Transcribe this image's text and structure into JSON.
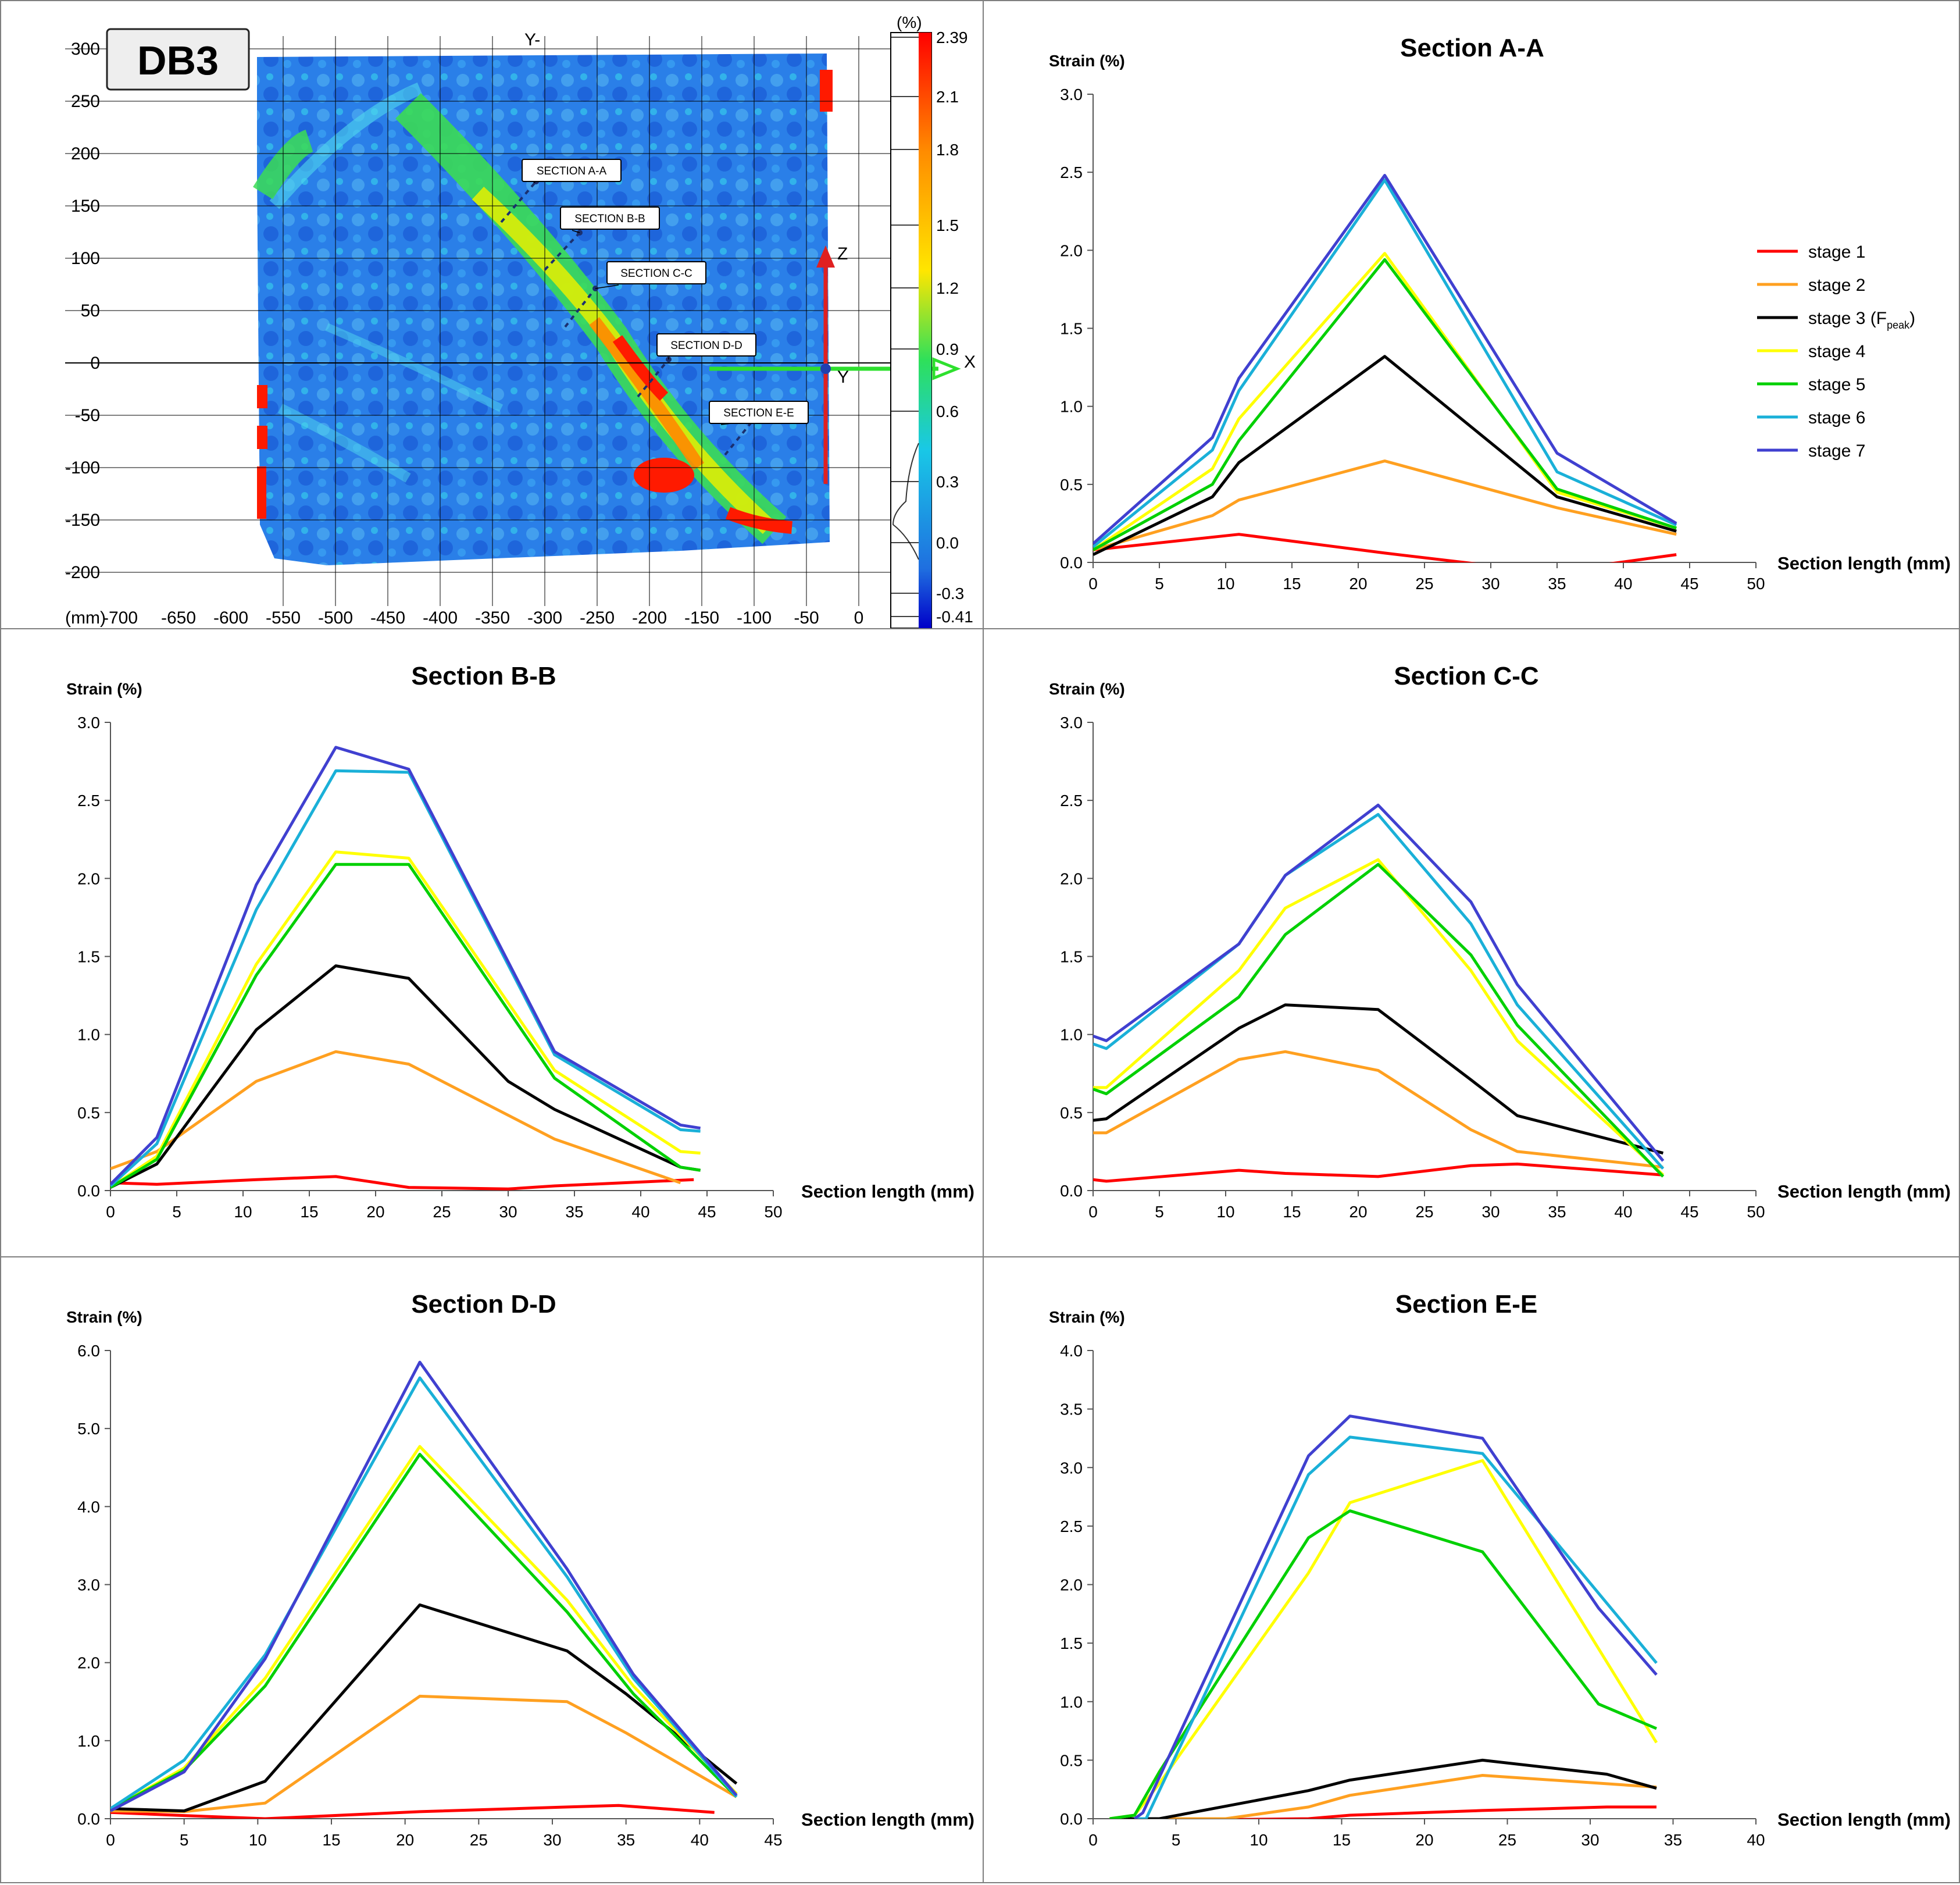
{
  "map": {
    "label": "DB3",
    "unit_label": "(mm)",
    "top_axis_label": "Y-",
    "x_ticks": [
      "-700",
      "-650",
      "-600",
      "-550",
      "-500",
      "-450",
      "-400",
      "-350",
      "-300",
      "-250",
      "-200",
      "-150",
      "-100",
      "-50",
      "0",
      "50"
    ],
    "y_ticks": [
      "300",
      "250",
      "200",
      "150",
      "100",
      "50",
      "0",
      "-50",
      "-100",
      "-150",
      "-200"
    ],
    "section_labels": [
      "SECTION A-A",
      "SECTION B-B",
      "SECTION C-C",
      "SECTION D-D",
      "SECTION E-E"
    ],
    "axis_labels": {
      "z": "Z",
      "x": "X",
      "y": "Y"
    },
    "colorbar": {
      "unit": "(%)",
      "ticks": [
        "2.39",
        "2.1",
        "1.8",
        "1.5",
        "1.2",
        "0.9",
        "0.6",
        "0.3",
        "0.0",
        "-0.3",
        "-0.41"
      ]
    },
    "colors": {
      "low": "#1f6fe0",
      "mid": "#19c8e6",
      "band": "#2ee05a",
      "high": "#ffe600",
      "peak": "#ff0000"
    }
  },
  "legend": {
    "items": [
      {
        "label": "stage 1",
        "color": "#ff0000"
      },
      {
        "label": "stage 2",
        "color": "#ffa020"
      },
      {
        "label": "stage 3 (F",
        "sub": "peak",
        "suffix": ")",
        "color": "#000000"
      },
      {
        "label": "stage 4",
        "color": "#ffff00"
      },
      {
        "label": "stage 5",
        "color": "#00d000"
      },
      {
        "label": "stage 6",
        "color": "#1ab0d8"
      },
      {
        "label": "stage 7",
        "color": "#4040d0"
      }
    ]
  },
  "chart_data": [
    {
      "type": "line",
      "title": "Section A-A",
      "ylabel": "Strain  (%)",
      "xlabel": "Section length (mm)",
      "xlim": [
        0,
        50
      ],
      "ylim": [
        0,
        3.0
      ],
      "xticks": [
        0,
        5,
        10,
        15,
        20,
        25,
        30,
        35,
        40,
        45,
        50
      ],
      "yticks": [
        "0.0",
        "0.5",
        "1.0",
        "1.5",
        "2.0",
        "2.5",
        "3.0"
      ],
      "series": [
        {
          "name": "stage 1",
          "color": "#ff0000",
          "x": [
            0,
            11,
            22,
            30,
            38,
            44
          ],
          "y": [
            0.08,
            0.18,
            0.06,
            -0.02,
            -0.02,
            0.05
          ]
        },
        {
          "name": "stage 2",
          "color": "#ffa020",
          "x": [
            0,
            9,
            11,
            22,
            35,
            44
          ],
          "y": [
            0.08,
            0.3,
            0.4,
            0.65,
            0.35,
            0.18
          ]
        },
        {
          "name": "stage 3 (Fpeak)",
          "color": "#000000",
          "x": [
            0,
            9,
            11,
            22,
            35,
            44
          ],
          "y": [
            0.05,
            0.42,
            0.64,
            1.32,
            0.42,
            0.2
          ]
        },
        {
          "name": "stage 4",
          "color": "#ffff00",
          "x": [
            0,
            9,
            11,
            22,
            35,
            44
          ],
          "y": [
            0.08,
            0.6,
            0.92,
            1.98,
            0.45,
            0.22
          ]
        },
        {
          "name": "stage 5",
          "color": "#00d000",
          "x": [
            0,
            9,
            11,
            22,
            35,
            44
          ],
          "y": [
            0.08,
            0.5,
            0.78,
            1.94,
            0.47,
            0.22
          ]
        },
        {
          "name": "stage 6",
          "color": "#1ab0d8",
          "x": [
            0,
            9,
            11,
            22,
            35,
            44
          ],
          "y": [
            0.1,
            0.72,
            1.1,
            2.45,
            0.58,
            0.24
          ]
        },
        {
          "name": "stage 7",
          "color": "#4040d0",
          "x": [
            0,
            9,
            11,
            22,
            35,
            44
          ],
          "y": [
            0.12,
            0.8,
            1.18,
            2.48,
            0.7,
            0.25
          ]
        }
      ]
    },
    {
      "type": "line",
      "title": "Section B-B",
      "ylabel": "Strain  (%)",
      "xlabel": "Section length (mm)",
      "xlim": [
        0,
        50
      ],
      "ylim": [
        0,
        3.0
      ],
      "xticks": [
        0,
        5,
        10,
        15,
        20,
        25,
        30,
        35,
        40,
        45,
        50
      ],
      "yticks": [
        "0.0",
        "0.5",
        "1.0",
        "1.5",
        "2.0",
        "2.5",
        "3.0"
      ],
      "series": [
        {
          "name": "stage 1",
          "color": "#ff0000",
          "x": [
            0,
            3.5,
            11,
            17,
            22.5,
            30,
            33.5,
            44
          ],
          "y": [
            0.05,
            0.04,
            0.07,
            0.09,
            0.02,
            0.01,
            0.03,
            0.07
          ]
        },
        {
          "name": "stage 2",
          "color": "#ffa020",
          "x": [
            0,
            3.5,
            11,
            17,
            22.5,
            33.5,
            43
          ],
          "y": [
            0.14,
            0.25,
            0.7,
            0.89,
            0.81,
            0.33,
            0.05
          ]
        },
        {
          "name": "stage 3 (Fpeak)",
          "color": "#000000",
          "x": [
            0,
            3.5,
            11,
            17,
            22.5,
            30,
            33.5,
            43,
            44.5
          ],
          "y": [
            0.02,
            0.17,
            1.03,
            1.44,
            1.36,
            0.7,
            0.52,
            0.15,
            0.13
          ]
        },
        {
          "name": "stage 4",
          "color": "#ffff00",
          "x": [
            0,
            3.5,
            11,
            17,
            22.5,
            33.5,
            43,
            44.5
          ],
          "y": [
            0.02,
            0.22,
            1.45,
            2.17,
            2.13,
            0.77,
            0.25,
            0.24
          ]
        },
        {
          "name": "stage 5",
          "color": "#00d000",
          "x": [
            0,
            3.5,
            11,
            17,
            22.5,
            33.5,
            43,
            44.5
          ],
          "y": [
            0.02,
            0.2,
            1.38,
            2.09,
            2.09,
            0.72,
            0.15,
            0.13
          ]
        },
        {
          "name": "stage 6",
          "color": "#1ab0d8",
          "x": [
            0,
            3.5,
            11,
            17,
            22.5,
            33.5,
            43,
            44.5
          ],
          "y": [
            0.03,
            0.3,
            1.8,
            2.69,
            2.68,
            0.87,
            0.39,
            0.38
          ]
        },
        {
          "name": "stage 7",
          "color": "#4040d0",
          "x": [
            0,
            3.5,
            11,
            17,
            22.5,
            33.5,
            43,
            44.5
          ],
          "y": [
            0.04,
            0.34,
            1.96,
            2.84,
            2.7,
            0.89,
            0.42,
            0.4
          ]
        }
      ]
    },
    {
      "type": "line",
      "title": "Section C-C",
      "ylabel": "Strain  (%)",
      "xlabel": "Section length (mm)",
      "xlim": [
        0,
        50
      ],
      "ylim": [
        0,
        3.0
      ],
      "xticks": [
        0,
        5,
        10,
        15,
        20,
        25,
        30,
        35,
        40,
        45,
        50
      ],
      "yticks": [
        "0.0",
        "0.5",
        "1.0",
        "1.5",
        "2.0",
        "2.5",
        "3.0"
      ],
      "series": [
        {
          "name": "stage 1",
          "color": "#ff0000",
          "x": [
            0,
            1,
            11,
            14.5,
            21.5,
            28.5,
            32,
            43
          ],
          "y": [
            0.07,
            0.06,
            0.13,
            0.11,
            0.09,
            0.16,
            0.17,
            0.1
          ]
        },
        {
          "name": "stage 2",
          "color": "#ffa020",
          "x": [
            0,
            1,
            11,
            14.5,
            21.5,
            28.5,
            32,
            43
          ],
          "y": [
            0.37,
            0.37,
            0.84,
            0.89,
            0.77,
            0.39,
            0.25,
            0.15
          ]
        },
        {
          "name": "stage 3 (Fpeak)",
          "color": "#000000",
          "x": [
            0,
            1,
            11,
            14.5,
            21.5,
            28.5,
            32,
            43
          ],
          "y": [
            0.45,
            0.46,
            1.04,
            1.19,
            1.16,
            0.71,
            0.48,
            0.24
          ]
        },
        {
          "name": "stage 4",
          "color": "#ffff00",
          "x": [
            0,
            1,
            11,
            14.5,
            21.5,
            28.5,
            32,
            43
          ],
          "y": [
            0.66,
            0.66,
            1.41,
            1.81,
            2.12,
            1.41,
            0.96,
            0.1
          ]
        },
        {
          "name": "stage 5",
          "color": "#00d000",
          "x": [
            0,
            1,
            11,
            14.5,
            21.5,
            28.5,
            32,
            43
          ],
          "y": [
            0.65,
            0.62,
            1.24,
            1.64,
            2.09,
            1.51,
            1.06,
            0.09
          ]
        },
        {
          "name": "stage 6",
          "color": "#1ab0d8",
          "x": [
            0,
            1,
            11,
            14.5,
            21.5,
            28.5,
            32,
            43
          ],
          "y": [
            0.94,
            0.91,
            1.58,
            2.02,
            2.41,
            1.71,
            1.19,
            0.14
          ]
        },
        {
          "name": "stage 7",
          "color": "#4040d0",
          "x": [
            0,
            1,
            11,
            14.5,
            21.5,
            28.5,
            32,
            43
          ],
          "y": [
            0.99,
            0.96,
            1.58,
            2.02,
            2.47,
            1.85,
            1.32,
            0.19
          ]
        }
      ]
    },
    {
      "type": "line",
      "title": "Section D-D",
      "ylabel": "Strain  (%)",
      "xlabel": "Section length (mm)",
      "xlim": [
        0,
        45
      ],
      "ylim": [
        0,
        6.0
      ],
      "xticks": [
        0,
        5,
        10,
        15,
        20,
        25,
        30,
        35,
        40,
        45
      ],
      "yticks": [
        "0.0",
        "1.0",
        "2.0",
        "3.0",
        "4.0",
        "5.0",
        "6.0"
      ],
      "series": [
        {
          "name": "stage 1",
          "color": "#ff0000",
          "x": [
            0,
            5,
            10.5,
            21,
            31,
            34.5,
            41
          ],
          "y": [
            0.08,
            0.04,
            0.0,
            0.09,
            0.15,
            0.17,
            0.08
          ]
        },
        {
          "name": "stage 2",
          "color": "#ffa020",
          "x": [
            0,
            5,
            10.5,
            21,
            31,
            35,
            42.5
          ],
          "y": [
            0.1,
            0.09,
            0.2,
            1.57,
            1.5,
            1.1,
            0.28
          ]
        },
        {
          "name": "stage 3 (Fpeak)",
          "color": "#000000",
          "x": [
            0,
            5,
            10.5,
            21,
            31,
            35,
            42.5
          ],
          "y": [
            0.13,
            0.1,
            0.48,
            2.74,
            2.15,
            1.6,
            0.45
          ]
        },
        {
          "name": "stage 4",
          "color": "#ffff00",
          "x": [
            0,
            5,
            10.5,
            21,
            31,
            35.5,
            42.5
          ],
          "y": [
            0.12,
            0.65,
            1.8,
            4.77,
            2.8,
            1.7,
            0.32
          ]
        },
        {
          "name": "stage 5",
          "color": "#00d000",
          "x": [
            0,
            5,
            10.5,
            21,
            31,
            35.5,
            42.5
          ],
          "y": [
            0.12,
            0.62,
            1.7,
            4.67,
            2.65,
            1.6,
            0.28
          ]
        },
        {
          "name": "stage 6",
          "color": "#1ab0d8",
          "x": [
            0,
            5,
            10.5,
            21,
            31,
            35.5,
            42.5
          ],
          "y": [
            0.13,
            0.75,
            2.1,
            5.65,
            3.1,
            1.8,
            0.28
          ]
        },
        {
          "name": "stage 7",
          "color": "#4040d0",
          "x": [
            0,
            5,
            10.5,
            21,
            31,
            35.5,
            42.5
          ],
          "y": [
            0.1,
            0.6,
            2.05,
            5.85,
            3.2,
            1.85,
            0.3
          ]
        }
      ]
    },
    {
      "type": "line",
      "title": "Section E-E",
      "ylabel": "Strain  (%)",
      "xlabel": "Section length (mm)",
      "xlim": [
        0,
        40
      ],
      "ylim": [
        0,
        4.0
      ],
      "xticks": [
        0,
        5,
        10,
        15,
        20,
        25,
        30,
        35,
        40
      ],
      "yticks": [
        "0.0",
        "0.5",
        "1.0",
        "1.5",
        "2.0",
        "2.5",
        "3.0",
        "3.5",
        "4.0"
      ],
      "series": [
        {
          "name": "stage 1",
          "color": "#ff0000",
          "x": [
            0,
            13,
            15.5,
            23.5,
            31,
            34
          ],
          "y": [
            -0.02,
            0.0,
            0.03,
            0.07,
            0.1,
            0.1
          ]
        },
        {
          "name": "stage 2",
          "color": "#ffa020",
          "x": [
            1,
            8,
            13,
            15.5,
            23.5,
            34
          ],
          "y": [
            0.0,
            0.0,
            0.1,
            0.2,
            0.37,
            0.27
          ]
        },
        {
          "name": "stage 3 (Fpeak)",
          "color": "#000000",
          "x": [
            1,
            4,
            13,
            15.5,
            23.5,
            31,
            34
          ],
          "y": [
            0.0,
            0.0,
            0.24,
            0.33,
            0.5,
            0.38,
            0.26
          ]
        },
        {
          "name": "stage 4",
          "color": "#ffff00",
          "x": [
            1,
            2.5,
            4,
            13,
            15.5,
            23.5,
            34
          ],
          "y": [
            0.0,
            0.03,
            0.3,
            2.1,
            2.7,
            3.06,
            0.65
          ]
        },
        {
          "name": "stage 5",
          "color": "#00d000",
          "x": [
            1,
            2.5,
            4,
            13,
            15.5,
            23.5,
            30.5,
            34
          ],
          "y": [
            0.0,
            0.03,
            0.4,
            2.4,
            2.63,
            2.28,
            0.98,
            0.77
          ]
        },
        {
          "name": "stage 6",
          "color": "#1ab0d8",
          "x": [
            2.5,
            3.2,
            13,
            15.5,
            23.5,
            34
          ],
          "y": [
            0.0,
            0.0,
            2.94,
            3.26,
            3.12,
            1.33
          ]
        },
        {
          "name": "stage 7",
          "color": "#4040d0",
          "x": [
            2.5,
            3,
            13,
            15.5,
            23.5,
            30.5,
            34
          ],
          "y": [
            0.0,
            0.05,
            3.1,
            3.44,
            3.25,
            1.8,
            1.23
          ]
        }
      ]
    }
  ]
}
